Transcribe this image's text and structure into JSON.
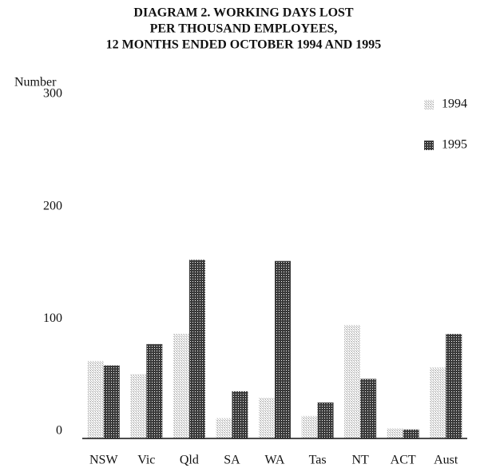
{
  "chart_data": {
    "type": "bar",
    "title": [
      "DIAGRAM 2. WORKING DAYS LOST",
      "PER THOUSAND EMPLOYEES,",
      "12 MONTHS ENDED OCTOBER 1994 AND 1995"
    ],
    "y_label": "Number",
    "categories": [
      "NSW",
      "Vic",
      "Qld",
      "SA",
      "WA",
      "Tas",
      "NT",
      "ACT",
      "Aust"
    ],
    "series": [
      {
        "name": "1994",
        "color": "#bdbdbd",
        "values": [
          69,
          57,
          93,
          18,
          36,
          20,
          101,
          9,
          63
        ]
      },
      {
        "name": "1995",
        "color": "#3a3a3a",
        "values": [
          65,
          84,
          159,
          42,
          158,
          32,
          53,
          8,
          93
        ]
      }
    ],
    "ylim": [
      0,
      300
    ],
    "yticks": [
      0,
      100,
      200,
      300
    ],
    "grid": false,
    "legend": "top-right"
  }
}
